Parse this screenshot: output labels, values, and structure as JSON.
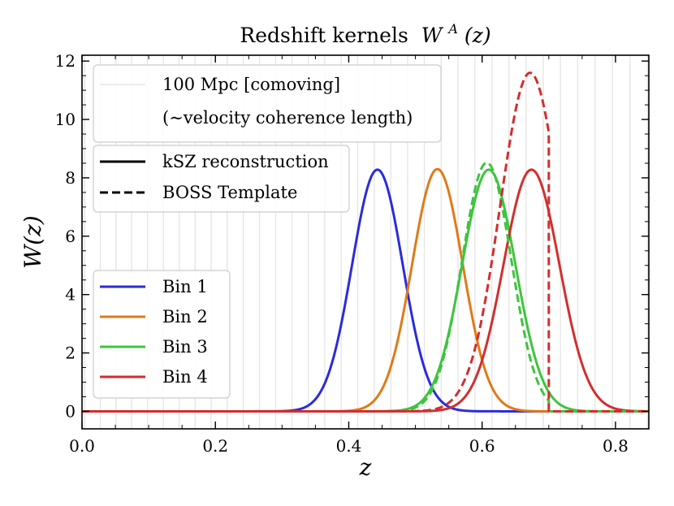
{
  "chart_data": {
    "type": "line",
    "title_main": "Redshift kernels",
    "title_math_base": "W",
    "title_math_sup": "A",
    "title_math_arg": "(z)",
    "xlabel": "z",
    "ylabel": "W(z)",
    "xlim": [
      0.0,
      0.85
    ],
    "ylim": [
      -0.6,
      12.2
    ],
    "xticks": [
      0.0,
      0.2,
      0.4,
      0.6,
      0.8
    ],
    "xtick_labels": [
      "0.0",
      "0.2",
      "0.4",
      "0.6",
      "0.8"
    ],
    "yticks": [
      0,
      2,
      4,
      6,
      8,
      10,
      12
    ],
    "ytick_labels": [
      "0",
      "2",
      "4",
      "6",
      "8",
      "10",
      "12"
    ],
    "grid": false,
    "vertical_guides": {
      "description_line1": "100 Mpc [comoving]",
      "description_line2": "(∼velocity coherence length)",
      "color": "#e6e6e6",
      "z_start": 0.004,
      "z_end": 0.85,
      "spacing_at_z0": 0.0234,
      "spacing_growth": 0.15
    },
    "style_legend": [
      {
        "label": "kSZ reconstruction",
        "dash": "solid"
      },
      {
        "label": "BOSS Template",
        "dash": "dashed"
      }
    ],
    "bin_legend": [
      {
        "label": "Bin 1",
        "color": "#2b2bdc"
      },
      {
        "label": "Bin 2",
        "color": "#e07a17"
      },
      {
        "label": "Bin 3",
        "color": "#3fc43f"
      },
      {
        "label": "Bin 4",
        "color": "#d22e2e"
      }
    ],
    "legend_placement": [
      "top-left",
      "left",
      "bottom-left"
    ],
    "series": [
      {
        "name": "Bin 1",
        "style": "solid",
        "kind": "gaussian",
        "color": "#2b2bdc",
        "center": 0.443,
        "sigma": 0.038,
        "amplitude": 8.28
      },
      {
        "name": "Bin 2",
        "style": "solid",
        "kind": "gaussian",
        "color": "#e07a17",
        "center": 0.533,
        "sigma": 0.038,
        "amplitude": 8.3
      },
      {
        "name": "Bin 3",
        "style": "solid",
        "kind": "gaussian",
        "color": "#3fc43f",
        "center": 0.61,
        "sigma": 0.04,
        "amplitude": 8.28
      },
      {
        "name": "Bin 4",
        "style": "solid",
        "kind": "gaussian",
        "color": "#d22e2e",
        "center": 0.674,
        "sigma": 0.042,
        "amplitude": 8.28
      },
      {
        "name": "Bin 3",
        "style": "dashed",
        "kind": "truncated",
        "color": "#3fc43f",
        "center": 0.607,
        "sigma": 0.037,
        "amplitude": 8.52,
        "cut": 0.7
      },
      {
        "name": "Bin 4",
        "style": "dashed",
        "kind": "truncated",
        "color": "#d22e2e",
        "center": 0.672,
        "sigma": 0.045,
        "amplitude": 11.6,
        "cut": 0.7
      }
    ]
  }
}
